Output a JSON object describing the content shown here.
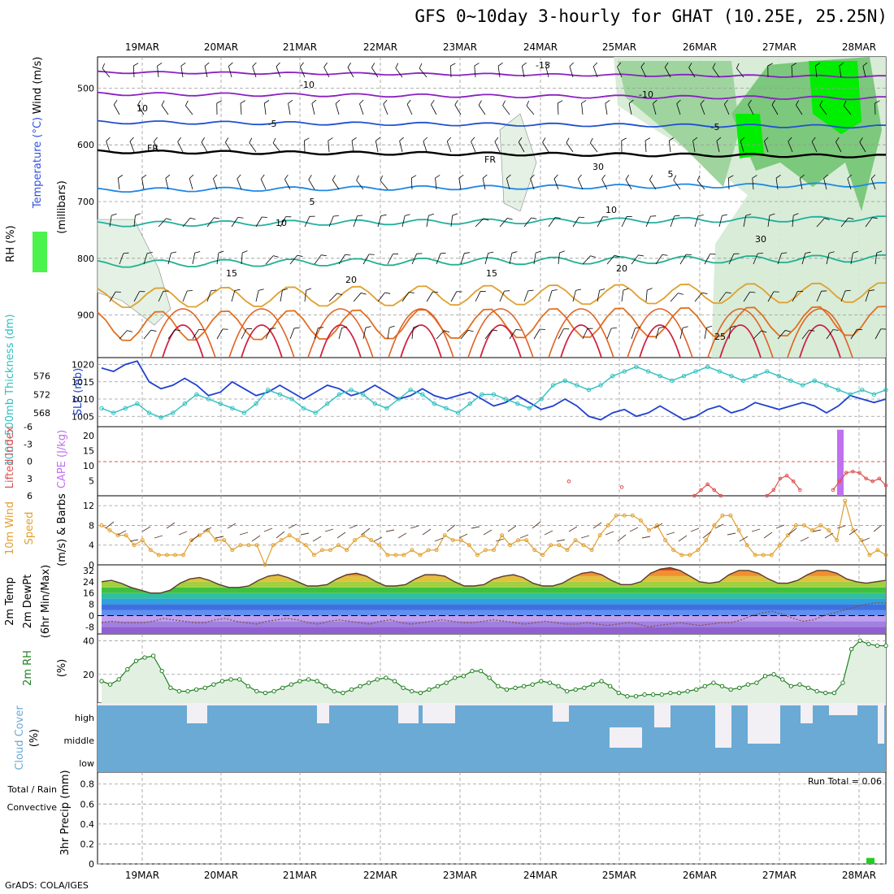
{
  "title": "GFS 0~10day 3-hourly for GHAT (10.25E, 25.25N)",
  "credit": "GrADS: COLA/IGES",
  "dates": [
    "19MAR",
    "20MAR",
    "21MAR",
    "22MAR",
    "23MAR",
    "24MAR",
    "25MAR",
    "26MAR",
    "27MAR",
    "28MAR"
  ],
  "colors": {
    "rh_green": "#00ee00",
    "temp_cold": "#3050e0",
    "temp_warm": "#e0a030",
    "slp": "#2040d0",
    "thickness": "#30c0c0",
    "cape": "#c070f0",
    "lifted": "#e05050",
    "wind10m": "#e0a030",
    "rh2m": "#208020",
    "cloud": "#6aaad4",
    "precip": "#22cc22"
  },
  "chart_data": [
    {
      "type": "line",
      "panel": "upper-air cross section",
      "ylabel_parts": [
        "RH (%)",
        "Temperature (°C)",
        "Wind (m/s)"
      ],
      "ylabel2": "(millibars)",
      "y_ticks": [
        "500",
        "600",
        "700",
        "800",
        "900"
      ],
      "ylim": [
        445,
        975
      ],
      "isotherms": [
        {
          "name": "-15",
          "values": [
            -15
          ]
        },
        {
          "name": "-10",
          "values": [
            -10
          ]
        },
        {
          "name": "-5",
          "values": [
            -5
          ]
        },
        {
          "name": "FR",
          "values": [
            0
          ]
        },
        {
          "name": "5",
          "values": [
            5
          ]
        },
        {
          "name": "10",
          "values": [
            10
          ]
        },
        {
          "name": "15",
          "values": [
            15
          ]
        },
        {
          "name": "20",
          "values": [
            20
          ]
        },
        {
          "name": "25",
          "values": [
            25
          ]
        }
      ],
      "contour_labels": [
        "-15",
        "-10",
        "-5",
        "FR",
        "5",
        "10",
        "15",
        "20",
        "25",
        "10",
        "30"
      ]
    },
    {
      "type": "line",
      "panel": "SLP and thickness",
      "ylabel_left": "1000-500mb Thickness (dm)",
      "ylabel_right": "SLP (mb)",
      "left_ticks": [
        "576",
        "572",
        "568"
      ],
      "right_ticks": [
        "1020",
        "1015",
        "1010",
        "1005"
      ],
      "series": [
        {
          "name": "SLP (mb)",
          "values": [
            1019,
            1018,
            1020,
            1021,
            1015,
            1013,
            1014,
            1016,
            1014,
            1011,
            1012,
            1015,
            1013,
            1011,
            1012,
            1014,
            1012,
            1010,
            1012,
            1014,
            1013,
            1011,
            1012,
            1014,
            1012,
            1010,
            1011,
            1013,
            1011,
            1010,
            1011,
            1012,
            1010,
            1008,
            1009,
            1011,
            1009,
            1007,
            1008,
            1010,
            1008,
            1005,
            1004,
            1006,
            1007,
            1005,
            1006,
            1008,
            1006,
            1004,
            1005,
            1007,
            1008,
            1006,
            1007,
            1009,
            1008,
            1007,
            1008,
            1009,
            1008,
            1006,
            1008,
            1011,
            1010,
            1009,
            1010
          ]
        },
        {
          "name": "1000-500mb Thickness (dm)",
          "values": [
            569,
            568,
            569,
            570,
            568,
            567,
            568,
            570,
            572,
            571,
            570,
            569,
            568,
            570,
            573,
            572,
            571,
            569,
            568,
            570,
            572,
            573,
            572,
            570,
            569,
            571,
            573,
            572,
            570,
            569,
            568,
            570,
            572,
            572,
            571,
            570,
            569,
            571,
            574,
            575,
            574,
            573,
            574,
            576,
            577,
            578,
            577,
            576,
            575,
            576,
            577,
            578,
            577,
            576,
            575,
            576,
            577,
            576,
            575,
            574,
            575,
            574,
            573,
            572,
            573,
            572,
            573
          ]
        }
      ]
    },
    {
      "type": "bar",
      "panel": "instability",
      "ylabel_left": "Lifted Index",
      "ylabel_right": "CAPE (J/kg)",
      "left_ticks": [
        "-6",
        "-3",
        "0",
        "3",
        "6"
      ],
      "right_ticks": [
        "20",
        "15",
        "10",
        "5"
      ],
      "cape_bars": [
        {
          "x": "27MAR 18Z",
          "value": 22
        }
      ],
      "lifted_index_values": [
        3.5,
        null,
        null,
        null,
        null,
        null,
        null,
        null,
        4.5,
        null,
        null,
        null,
        null,
        null,
        null,
        null,
        null,
        null,
        null,
        6,
        5,
        4,
        5,
        6,
        null,
        null,
        null,
        null,
        null,
        null,
        6,
        5,
        3,
        2.5,
        3.5,
        5,
        null,
        null,
        null,
        null,
        5,
        3.5,
        2,
        1.8,
        2,
        3,
        3.5,
        3,
        4.2
      ]
    },
    {
      "type": "line",
      "panel": "10m wind",
      "ylabel_left": "10m Wind",
      "ylabel_parts": [
        "Speed",
        "(m/s) & Barbs"
      ],
      "y_ticks": [
        "12",
        "8",
        "4",
        "0"
      ],
      "ylim": [
        0,
        14
      ],
      "series": [
        {
          "name": "10m Wind Speed (m/s)",
          "values": [
            8,
            7,
            6,
            6,
            4,
            5,
            3,
            2,
            2,
            2,
            2,
            5,
            6,
            7,
            5,
            5,
            3,
            4,
            4,
            4,
            0,
            4,
            5,
            6,
            5,
            4,
            2,
            3,
            3,
            4,
            3,
            5,
            6,
            5,
            4,
            2,
            2,
            2,
            3,
            2,
            3,
            3,
            6,
            5,
            5,
            4,
            2,
            3,
            3,
            6,
            4,
            5,
            5,
            3,
            2,
            4,
            4,
            3,
            5,
            4,
            3,
            6,
            8,
            10,
            10,
            10,
            9,
            7,
            8,
            5,
            3,
            2,
            2,
            3,
            5,
            8,
            10,
            10,
            7,
            4,
            2,
            2,
            2,
            4,
            6,
            8,
            8,
            7,
            8,
            7,
            5,
            13,
            7,
            5,
            2,
            3,
            2
          ]
        }
      ]
    },
    {
      "type": "area",
      "panel": "2m temperature and dewpoint",
      "ylabel_parts": [
        "2m Temp",
        "2m DewPt",
        "(6hr Min/Max)"
      ],
      "y_ticks": [
        "32",
        "24",
        "16",
        "8",
        "0",
        "-8"
      ],
      "ylim": [
        -13,
        36
      ],
      "series": [
        {
          "name": "2m Temp (°C)",
          "values": [
            24,
            25,
            23,
            20,
            18,
            16,
            16,
            18,
            23,
            26,
            27,
            25,
            22,
            20,
            20,
            21,
            25,
            28,
            29,
            27,
            24,
            21,
            21,
            22,
            26,
            29,
            30,
            28,
            24,
            21,
            21,
            22,
            26,
            29,
            29,
            28,
            24,
            21,
            21,
            22,
            26,
            28,
            29,
            27,
            23,
            21,
            21,
            23,
            27,
            30,
            31,
            29,
            25,
            22,
            22,
            24,
            30,
            33,
            34,
            32,
            28,
            24,
            23,
            24,
            29,
            32,
            32,
            30,
            26,
            23,
            23,
            25,
            29,
            32,
            32,
            30,
            26,
            24,
            23,
            24,
            25
          ]
        },
        {
          "name": "2m DewPt (°C)",
          "values": [
            -5,
            -4,
            -5,
            -5,
            -5,
            -4,
            -2,
            -3,
            -4,
            -5,
            -5,
            -3,
            -2,
            -4,
            -5,
            -6,
            -4,
            -3,
            -2,
            -3,
            -5,
            -6,
            -4,
            -3,
            -4,
            -5,
            -6,
            -4,
            -3,
            -5,
            -6,
            -5,
            -4,
            -3,
            -4,
            -5,
            -5,
            -4,
            -3,
            -4,
            -5,
            -6,
            -5,
            -4,
            -5,
            -6,
            -6,
            -5,
            -6,
            -7,
            -6,
            -5,
            -6,
            -8,
            -7,
            -6,
            -5,
            -6,
            -7,
            -6,
            -5,
            -5,
            -3,
            0,
            2,
            3,
            1,
            -2,
            -4,
            -3,
            0,
            2,
            4,
            6,
            8,
            9,
            9
          ]
        }
      ]
    },
    {
      "type": "area",
      "panel": "2m RH",
      "ylabel": "2m RH",
      "yunit": "(%)",
      "y_ticks": [
        "40",
        "20"
      ],
      "ylim": [
        3,
        44
      ],
      "series": [
        {
          "name": "2m RH (%)",
          "values": [
            16,
            14,
            17,
            23,
            28,
            30,
            31,
            22,
            12,
            10,
            10,
            11,
            12,
            14,
            16,
            17,
            17,
            13,
            10,
            9,
            10,
            12,
            14,
            16,
            17,
            16,
            13,
            10,
            9,
            11,
            13,
            15,
            17,
            18,
            16,
            12,
            10,
            9,
            11,
            13,
            15,
            18,
            19,
            22,
            22,
            18,
            13,
            11,
            12,
            13,
            14,
            16,
            15,
            13,
            10,
            11,
            12,
            14,
            16,
            13,
            9,
            7,
            7,
            8,
            8,
            8,
            9,
            9,
            10,
            11,
            13,
            15,
            13,
            11,
            12,
            14,
            15,
            19,
            20,
            17,
            13,
            14,
            12,
            10,
            9,
            9,
            15,
            35,
            40,
            38,
            37,
            37
          ]
        }
      ]
    },
    {
      "type": "bar",
      "panel": "cloud cover",
      "ylabel": "Cloud Cover",
      "yunit": "(%)",
      "levels": [
        "high",
        "middle",
        "low"
      ]
    },
    {
      "type": "bar",
      "panel": "precipitation",
      "ylabel_left_parts": [
        "Total / Rain",
        "Convective"
      ],
      "ylabel_right": "3hr Precip (mm)",
      "y_ticks": [
        "0.8",
        "0.6",
        "0.4",
        "0.2",
        "0"
      ],
      "ylim": [
        0,
        0.92
      ],
      "run_total": "Run Total = 0.06",
      "bars": [
        {
          "x": "28MAR 09Z",
          "value": 0.06
        }
      ]
    }
  ]
}
